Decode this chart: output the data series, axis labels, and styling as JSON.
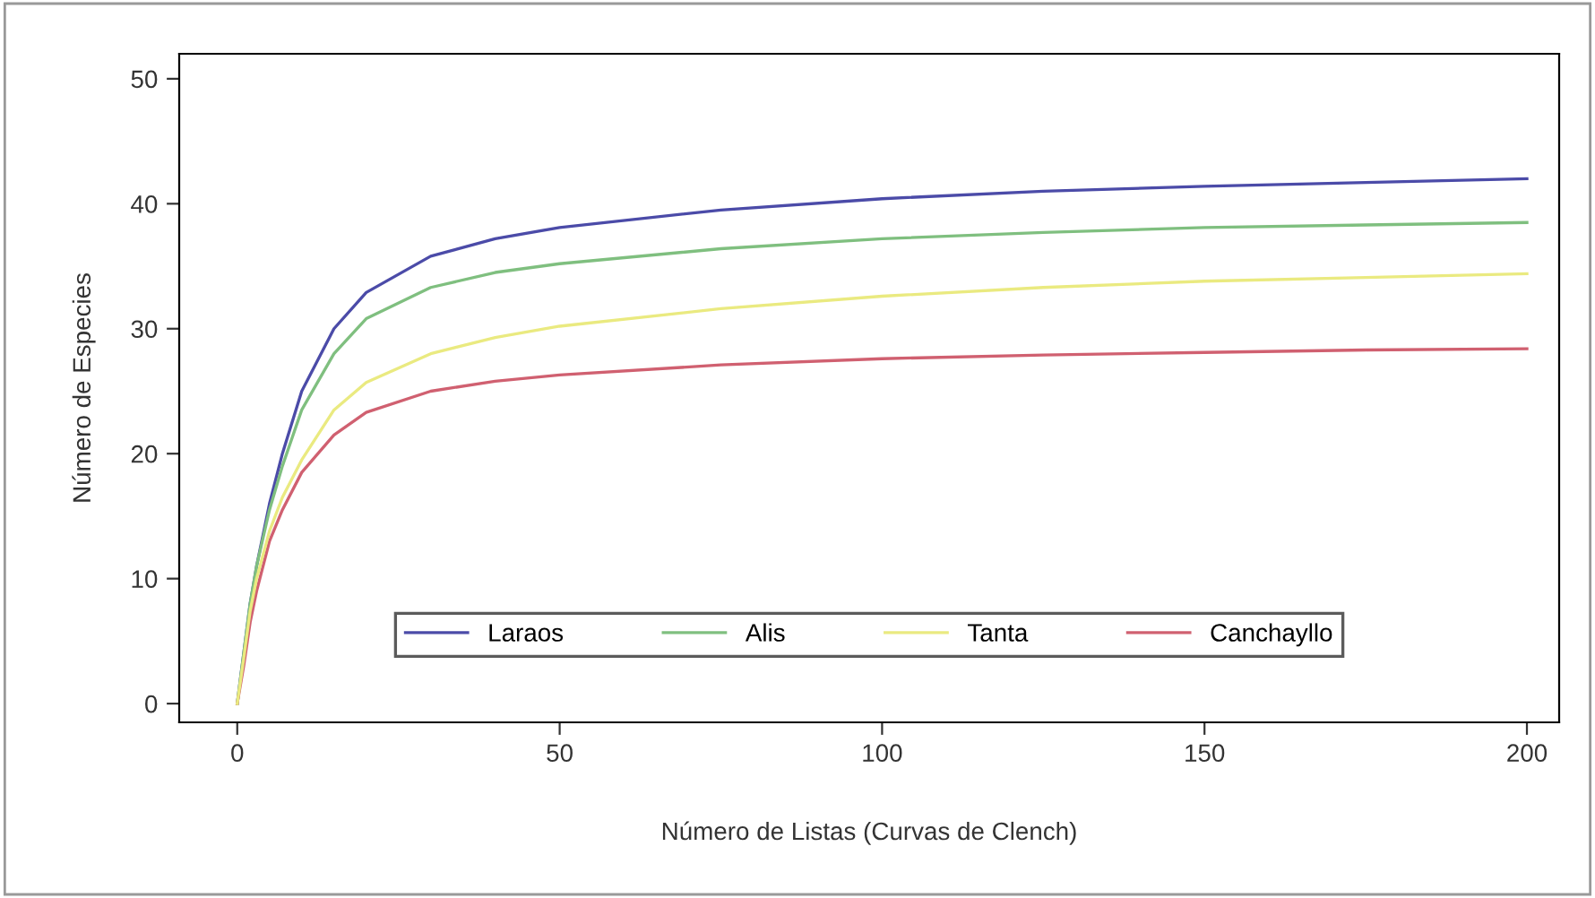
{
  "chart_data": {
    "type": "line",
    "xlabel": "Número de Listas (Curvas de Clench)",
    "ylabel": "Número de Especies",
    "x": [
      0,
      1,
      2,
      3,
      5,
      7,
      10,
      15,
      20,
      30,
      40,
      50,
      75,
      100,
      125,
      150,
      175,
      200
    ],
    "series": [
      {
        "name": "Laraos",
        "color": "#4b4ba8",
        "values": [
          0,
          4,
          8,
          11,
          16,
          20,
          25,
          30,
          32.9,
          35.8,
          37.2,
          38.1,
          39.5,
          40.4,
          41.0,
          41.4,
          41.7,
          42.0
        ]
      },
      {
        "name": "Alis",
        "color": "#7fbf7f",
        "values": [
          0,
          4,
          8,
          11,
          15.5,
          19,
          23.5,
          28,
          30.8,
          33.3,
          34.5,
          35.2,
          36.4,
          37.2,
          37.7,
          38.1,
          38.3,
          38.5
        ]
      },
      {
        "name": "Tanta",
        "color": "#eaea80",
        "values": [
          0,
          3.6,
          7.4,
          10,
          13.8,
          16.5,
          19.5,
          23.5,
          25.7,
          28,
          29.3,
          30.2,
          31.6,
          32.6,
          33.3,
          33.8,
          34.1,
          34.4
        ]
      },
      {
        "name": "Canchayllo",
        "color": "#d06070",
        "values": [
          0,
          3,
          6.5,
          9,
          13,
          15.5,
          18.5,
          21.5,
          23.3,
          25,
          25.8,
          26.3,
          27.1,
          27.6,
          27.9,
          28.1,
          28.3,
          28.4
        ]
      }
    ],
    "xlim": [
      -9,
      205
    ],
    "ylim": [
      -1.5,
      52
    ],
    "xticks": [
      0,
      50,
      100,
      150,
      200
    ],
    "yticks": [
      0,
      10,
      20,
      30,
      40,
      50
    ],
    "grid": false,
    "legend": "bottom",
    "marker": "none",
    "line_style": "solid"
  }
}
